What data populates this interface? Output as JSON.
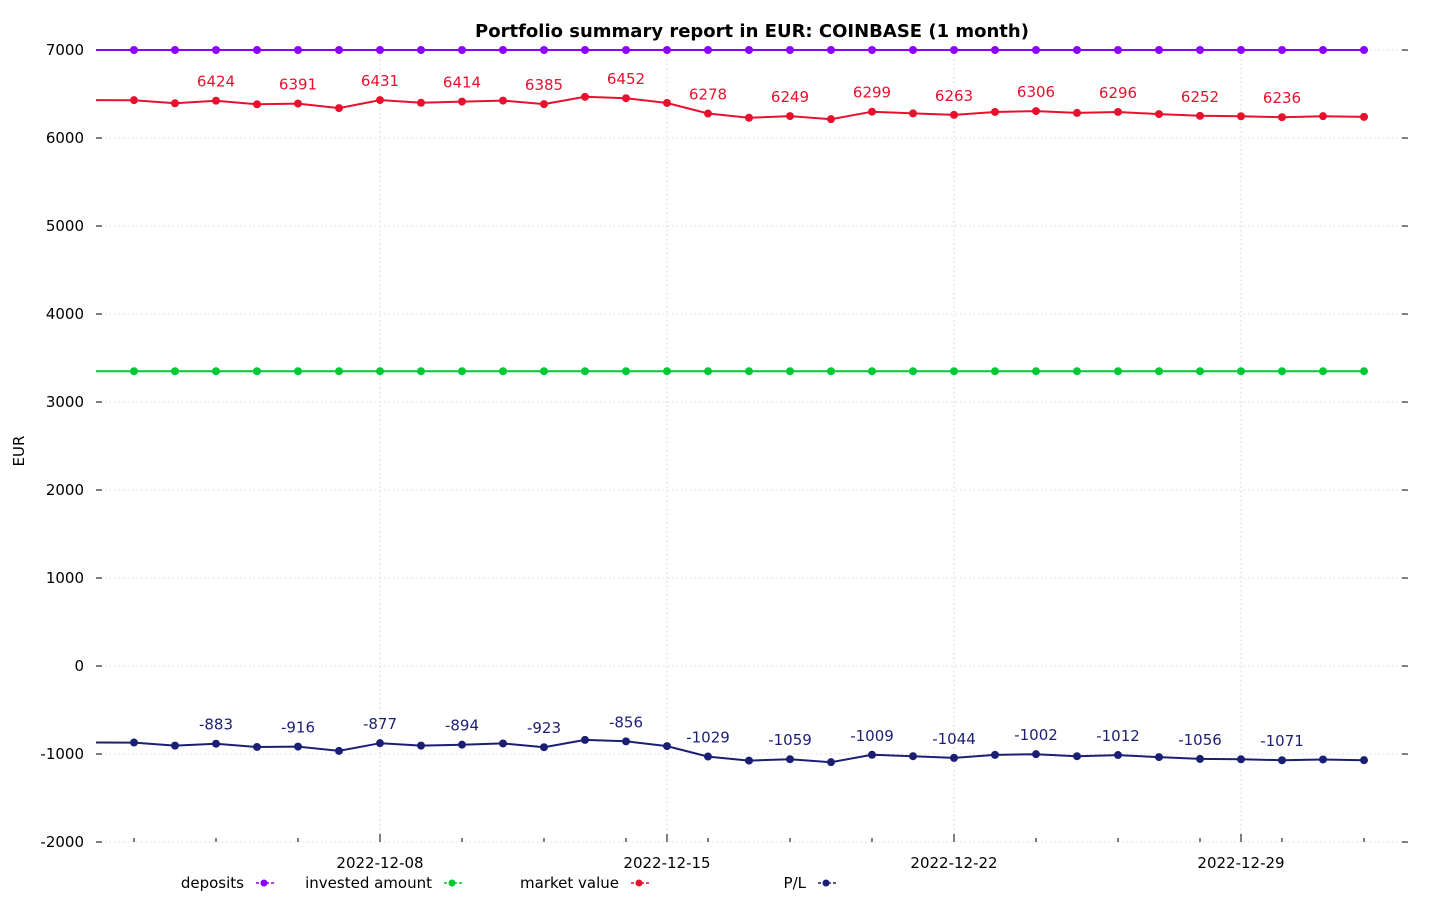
{
  "chart_data": {
    "type": "line",
    "title": "Portfolio summary report in EUR: COINBASE (1 month)",
    "ylabel": "EUR",
    "xlabel": "",
    "ylim": [
      -2000,
      7000
    ],
    "yticks": [
      -2000,
      -1000,
      0,
      1000,
      2000,
      3000,
      4000,
      5000,
      6000,
      7000
    ],
    "x": [
      "2022-12-02",
      "2022-12-03",
      "2022-12-04",
      "2022-12-05",
      "2022-12-06",
      "2022-12-07",
      "2022-12-08",
      "2022-12-09",
      "2022-12-10",
      "2022-12-11",
      "2022-12-12",
      "2022-12-13",
      "2022-12-14",
      "2022-12-15",
      "2022-12-16",
      "2022-12-17",
      "2022-12-18",
      "2022-12-19",
      "2022-12-20",
      "2022-12-21",
      "2022-12-22",
      "2022-12-23",
      "2022-12-24",
      "2022-12-25",
      "2022-12-26",
      "2022-12-27",
      "2022-12-28",
      "2022-12-29",
      "2022-12-30",
      "2022-12-31",
      "2023-01-01"
    ],
    "xlim": [
      "2022-12-02",
      "2023-01-01"
    ],
    "xticks": [
      "2022-12-08",
      "2022-12-15",
      "2022-12-22",
      "2022-12-29"
    ],
    "grid": true,
    "legend_position": "bottom",
    "series": [
      {
        "name": "deposits",
        "color": "#8b00ff",
        "values": [
          7000,
          7000,
          7000,
          7000,
          7000,
          7000,
          7000,
          7000,
          7000,
          7000,
          7000,
          7000,
          7000,
          7000,
          7000,
          7000,
          7000,
          7000,
          7000,
          7000,
          7000,
          7000,
          7000,
          7000,
          7000,
          7000,
          7000,
          7000,
          7000,
          7000,
          7000
        ],
        "labels": []
      },
      {
        "name": "invested amount",
        "color": "#00c832",
        "values": [
          3350,
          3350,
          3350,
          3350,
          3350,
          3350,
          3350,
          3350,
          3350,
          3350,
          3350,
          3350,
          3350,
          3350,
          3350,
          3350,
          3350,
          3350,
          3350,
          3350,
          3350,
          3350,
          3350,
          3350,
          3350,
          3350,
          3350,
          3350,
          3350,
          3350,
          3350
        ],
        "labels": []
      },
      {
        "name": "market value",
        "color": "#e8112d",
        "values": [
          6430,
          6395,
          6424,
          6383,
          6391,
          6340,
          6431,
          6400,
          6414,
          6425,
          6385,
          6468,
          6452,
          6398,
          6278,
          6230,
          6249,
          6214,
          6299,
          6280,
          6263,
          6296,
          6306,
          6285,
          6296,
          6272,
          6252,
          6247,
          6236,
          6248,
          6240
        ],
        "labels": [
          {
            "x": "2022-12-04",
            "text": "6424"
          },
          {
            "x": "2022-12-06",
            "text": "6391"
          },
          {
            "x": "2022-12-08",
            "text": "6431"
          },
          {
            "x": "2022-12-10",
            "text": "6414"
          },
          {
            "x": "2022-12-12",
            "text": "6385"
          },
          {
            "x": "2022-12-14",
            "text": "6452"
          },
          {
            "x": "2022-12-16",
            "text": "6278"
          },
          {
            "x": "2022-12-18",
            "text": "6249"
          },
          {
            "x": "2022-12-20",
            "text": "6299"
          },
          {
            "x": "2022-12-22",
            "text": "6263"
          },
          {
            "x": "2022-12-24",
            "text": "6306"
          },
          {
            "x": "2022-12-26",
            "text": "6296"
          },
          {
            "x": "2022-12-28",
            "text": "6252"
          },
          {
            "x": "2022-12-30",
            "text": "6236"
          }
        ]
      },
      {
        "name": "P/L",
        "color": "#1b1f73",
        "values": [
          -870,
          -905,
          -883,
          -920,
          -916,
          -965,
          -877,
          -905,
          -894,
          -880,
          -923,
          -840,
          -856,
          -910,
          -1029,
          -1075,
          -1059,
          -1093,
          -1009,
          -1025,
          -1044,
          -1010,
          -1002,
          -1025,
          -1012,
          -1035,
          -1056,
          -1060,
          -1071,
          -1062,
          -1070
        ],
        "labels": [
          {
            "x": "2022-12-04",
            "text": "-883"
          },
          {
            "x": "2022-12-06",
            "text": "-916"
          },
          {
            "x": "2022-12-08",
            "text": "-877"
          },
          {
            "x": "2022-12-10",
            "text": "-894"
          },
          {
            "x": "2022-12-12",
            "text": "-923"
          },
          {
            "x": "2022-12-14",
            "text": "-856"
          },
          {
            "x": "2022-12-16",
            "text": "-1029"
          },
          {
            "x": "2022-12-18",
            "text": "-1059"
          },
          {
            "x": "2022-12-20",
            "text": "-1009"
          },
          {
            "x": "2022-12-22",
            "text": "-1044"
          },
          {
            "x": "2022-12-24",
            "text": "-1002"
          },
          {
            "x": "2022-12-26",
            "text": "-1012"
          },
          {
            "x": "2022-12-28",
            "text": "-1056"
          },
          {
            "x": "2022-12-30",
            "text": "-1071"
          }
        ]
      }
    ]
  }
}
